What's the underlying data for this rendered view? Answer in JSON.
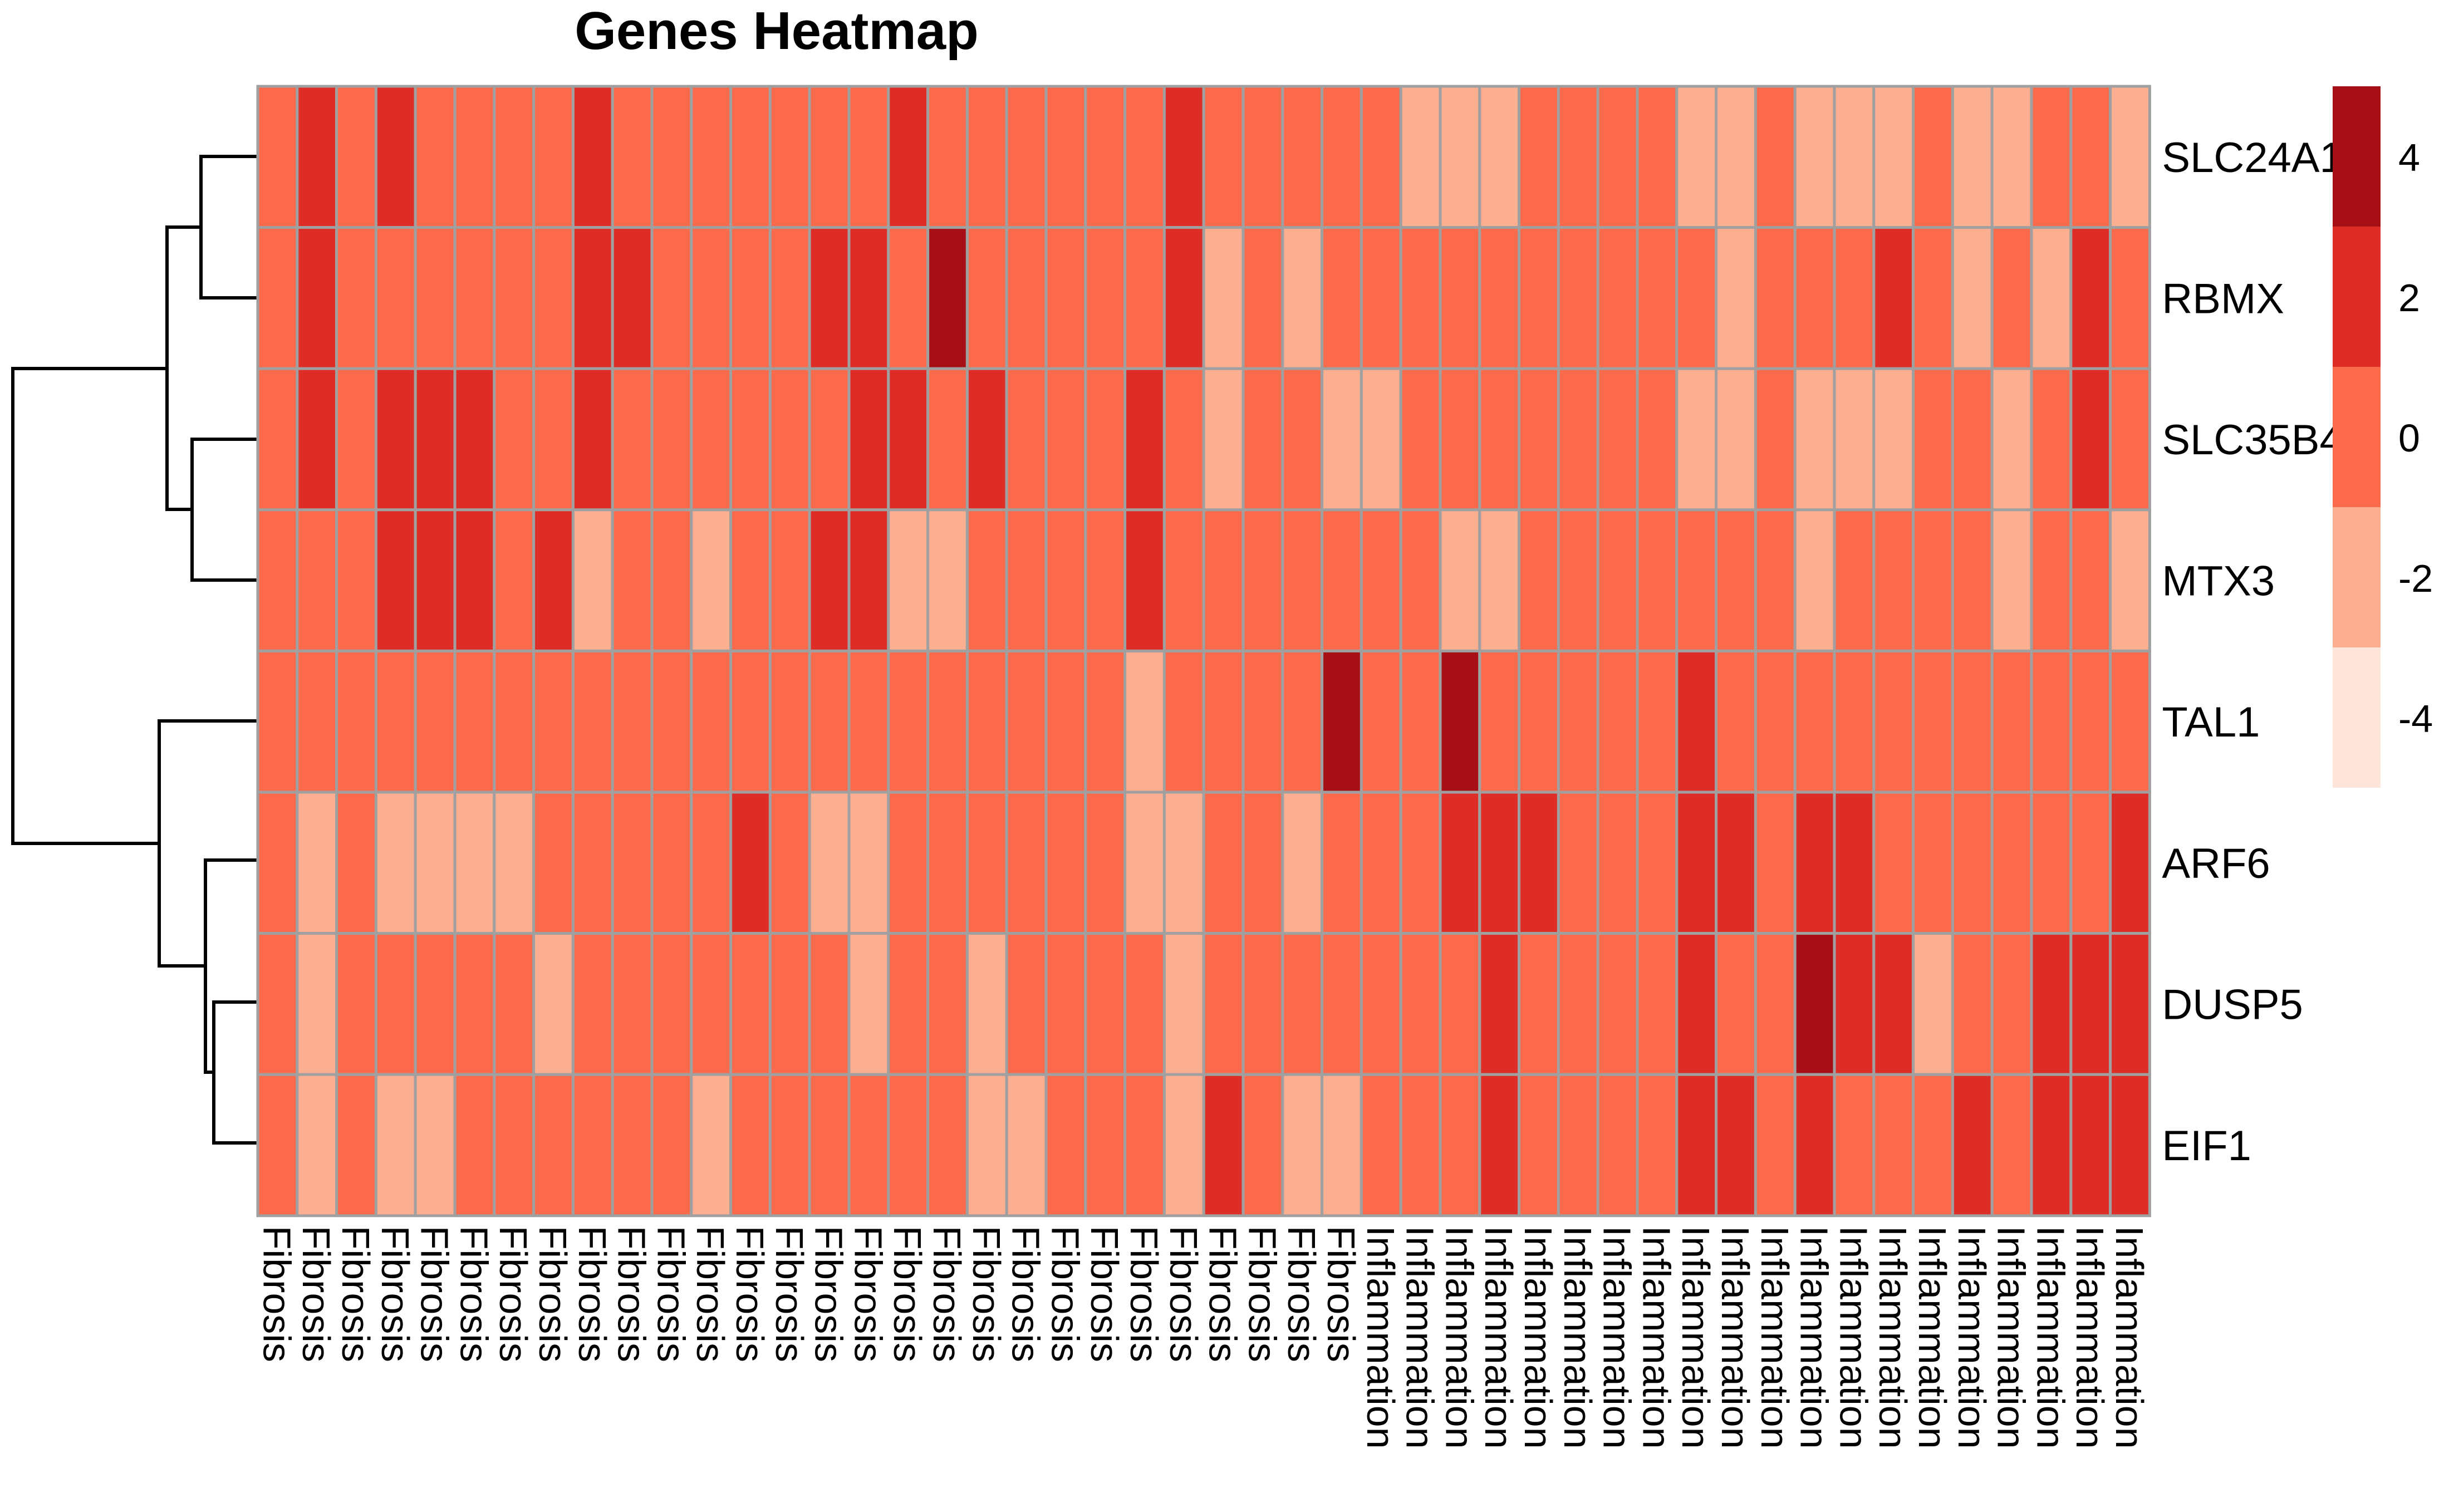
{
  "chart_data": {
    "type": "heatmap",
    "title": "Genes Heatmap",
    "rows": [
      "SLC24A1",
      "RBMX",
      "SLC35B4",
      "MTX3",
      "TAL1",
      "ARF6",
      "DUSP5",
      "EIF1"
    ],
    "columns": [
      "Fibrosis",
      "Fibrosis",
      "Fibrosis",
      "Fibrosis",
      "Fibrosis",
      "Fibrosis",
      "Fibrosis",
      "Fibrosis",
      "Fibrosis",
      "Fibrosis",
      "Fibrosis",
      "Fibrosis",
      "Fibrosis",
      "Fibrosis",
      "Fibrosis",
      "Fibrosis",
      "Fibrosis",
      "Fibrosis",
      "Fibrosis",
      "Fibrosis",
      "Fibrosis",
      "Fibrosis",
      "Fibrosis",
      "Fibrosis",
      "Fibrosis",
      "Fibrosis",
      "Fibrosis",
      "Fibrosis",
      "Inflammation",
      "Inflammation",
      "Inflammation",
      "Inflammation",
      "Inflammation",
      "Inflammation",
      "Inflammation",
      "Inflammation",
      "Inflammation",
      "Inflammation",
      "Inflammation",
      "Inflammation",
      "Inflammation",
      "Inflammation",
      "Inflammation",
      "Inflammation",
      "Inflammation",
      "Inflammation",
      "Inflammation",
      "Inflammation"
    ],
    "values": [
      [
        0,
        2,
        0,
        2,
        0,
        0,
        0,
        0,
        2,
        0,
        0,
        0,
        0,
        0,
        0,
        0,
        2,
        0,
        0,
        0,
        0,
        0,
        0,
        2,
        0,
        0,
        0,
        0,
        0,
        -2,
        -2,
        -2,
        0,
        0,
        0,
        0,
        -2,
        -2,
        0,
        -2,
        -2,
        -2,
        0,
        -2,
        -2,
        0,
        0,
        -2
      ],
      [
        0,
        2,
        0,
        0,
        0,
        0,
        0,
        0,
        2,
        2,
        0,
        0,
        0,
        0,
        2,
        2,
        0,
        4,
        0,
        0,
        0,
        0,
        0,
        2,
        -2,
        0,
        -2,
        0,
        0,
        0,
        0,
        0,
        0,
        0,
        0,
        0,
        0,
        -2,
        0,
        0,
        0,
        2,
        0,
        -2,
        0,
        -2,
        2,
        0
      ],
      [
        0,
        2,
        0,
        2,
        2,
        2,
        0,
        0,
        2,
        0,
        0,
        0,
        0,
        0,
        0,
        2,
        2,
        0,
        2,
        0,
        0,
        0,
        2,
        0,
        -2,
        0,
        0,
        -2,
        -2,
        0,
        0,
        0,
        0,
        0,
        0,
        0,
        -2,
        -2,
        0,
        -2,
        -2,
        -2,
        0,
        0,
        -2,
        0,
        2,
        0
      ],
      [
        0,
        0,
        0,
        2,
        2,
        2,
        0,
        2,
        -2,
        0,
        0,
        -2,
        0,
        0,
        2,
        2,
        -2,
        -2,
        0,
        0,
        0,
        0,
        2,
        0,
        0,
        0,
        0,
        0,
        0,
        0,
        -2,
        -2,
        0,
        0,
        0,
        0,
        0,
        0,
        0,
        -2,
        0,
        0,
        0,
        0,
        -2,
        0,
        0,
        -2
      ],
      [
        0,
        0,
        0,
        0,
        0,
        0,
        0,
        0,
        0,
        0,
        0,
        0,
        0,
        0,
        0,
        0,
        0,
        0,
        0,
        0,
        0,
        0,
        -2,
        0,
        0,
        0,
        0,
        4,
        0,
        0,
        4,
        0,
        0,
        0,
        0,
        0,
        2,
        0,
        0,
        0,
        0,
        0,
        0,
        0,
        0,
        0,
        0,
        0
      ],
      [
        0,
        -2,
        0,
        -2,
        -2,
        -2,
        -2,
        0,
        0,
        0,
        0,
        0,
        2,
        0,
        -2,
        -2,
        0,
        0,
        0,
        0,
        0,
        0,
        -2,
        -2,
        0,
        0,
        -2,
        0,
        0,
        0,
        2,
        2,
        2,
        0,
        0,
        0,
        2,
        2,
        0,
        2,
        2,
        0,
        0,
        0,
        0,
        0,
        0,
        2
      ],
      [
        0,
        -2,
        0,
        0,
        0,
        0,
        0,
        -2,
        0,
        0,
        0,
        0,
        0,
        0,
        0,
        -2,
        0,
        0,
        -2,
        0,
        0,
        0,
        0,
        -2,
        0,
        0,
        0,
        0,
        0,
        0,
        0,
        2,
        0,
        0,
        0,
        0,
        2,
        0,
        0,
        4,
        2,
        2,
        -2,
        0,
        0,
        2,
        2,
        2
      ],
      [
        0,
        -2,
        0,
        -2,
        -2,
        0,
        0,
        0,
        0,
        0,
        0,
        -2,
        0,
        0,
        0,
        0,
        0,
        0,
        -2,
        -2,
        0,
        0,
        0,
        -2,
        2,
        0,
        -2,
        -2,
        0,
        0,
        0,
        2,
        0,
        0,
        0,
        0,
        2,
        2,
        0,
        2,
        0,
        0,
        0,
        2,
        0,
        2,
        2,
        2
      ]
    ],
    "legend": {
      "ticks": [
        4,
        2,
        0,
        -2,
        -4
      ],
      "range": [
        -5,
        5
      ],
      "bins": [
        {
          "max": 5,
          "color": "#A50F15"
        },
        {
          "max": 3,
          "color": "#DE2D26"
        },
        {
          "max": 1,
          "color": "#FB6A4A"
        },
        {
          "max": -1,
          "color": "#FCAE91"
        },
        {
          "max": -3,
          "color": "#FEE5D9"
        }
      ]
    },
    "row_dendrogram": true,
    "grid_color": "#A0A0A0"
  }
}
